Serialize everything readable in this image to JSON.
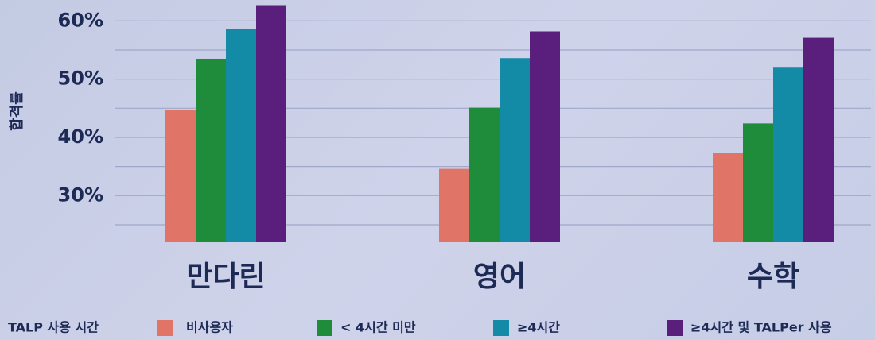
{
  "chart_data": {
    "type": "bar",
    "y_axis_label": "합격률",
    "legend_title": "TALP 사용 시간",
    "categories": [
      "만다린",
      "영어",
      "수학"
    ],
    "series": [
      {
        "name": "비사용자",
        "color": "#e07466",
        "values": [
          44.7,
          34.6,
          37.4
        ]
      },
      {
        "name": "< 4시간 미만",
        "color": "#1e8c3b",
        "values": [
          53.5,
          45.1,
          42.4
        ]
      },
      {
        "name": "≥4시간",
        "color": "#148ba6",
        "values": [
          58.6,
          53.6,
          52.1
        ]
      },
      {
        "name": "≥4시간 및 TALPer 사용",
        "color": "#5a1f7d",
        "values": [
          62.7,
          58.2,
          57.1
        ]
      }
    ],
    "ylim": [
      22,
      63
    ],
    "yticks": [
      {
        "value": 30,
        "label": "30%"
      },
      {
        "value": 40,
        "label": "40%"
      },
      {
        "value": 50,
        "label": "50%"
      },
      {
        "value": 60,
        "label": "60%"
      }
    ],
    "minor_yticks": [
      25,
      35,
      45,
      55
    ],
    "grid": true
  }
}
